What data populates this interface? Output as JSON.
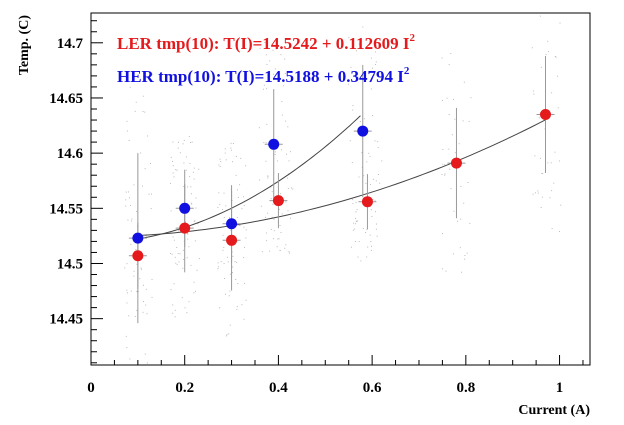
{
  "chart_data": {
    "type": "scatter",
    "xlabel": "Current (A)",
    "ylabel": "Temp. (C)",
    "xlim": [
      0,
      1.065
    ],
    "ylim": [
      14.408,
      14.727
    ],
    "x_ticks": [
      "0",
      "0.2",
      "0.4",
      "0.6",
      "0.8",
      "1"
    ],
    "x_tick_values": [
      0,
      0.2,
      0.4,
      0.6,
      0.8,
      1.0
    ],
    "y_ticks": [
      "14.45",
      "14.5",
      "14.55",
      "14.6",
      "14.65",
      "14.7"
    ],
    "y_tick_values": [
      14.45,
      14.5,
      14.55,
      14.6,
      14.65,
      14.7
    ],
    "grid": false,
    "legend_placement": "top-left",
    "series": [
      {
        "name": "LER",
        "color": "#e41a1c",
        "fit_label": "LER tmp(10): T(I)=14.5242 + 0.112609 I",
        "fit_exponent": "2",
        "fit": {
          "a": 14.5242,
          "b": 0.112609,
          "x_range": [
            0.1,
            0.97
          ]
        },
        "points": [
          {
            "x": 0.1,
            "y": 14.507,
            "err": 0.03
          },
          {
            "x": 0.2,
            "y": 14.532,
            "err": 0.04
          },
          {
            "x": 0.3,
            "y": 14.521,
            "err": 0.045
          },
          {
            "x": 0.4,
            "y": 14.557,
            "err": 0.025
          },
          {
            "x": 0.59,
            "y": 14.556,
            "err": 0.025
          },
          {
            "x": 0.78,
            "y": 14.591,
            "err": 0.05
          },
          {
            "x": 0.97,
            "y": 14.635,
            "err": 0.053
          }
        ]
      },
      {
        "name": "HER",
        "color": "#1010e0",
        "fit_label": "HER tmp(10): T(I)=14.5188 + 0.34794 I",
        "fit_exponent": "2",
        "fit": {
          "a": 14.5188,
          "b": 0.34794,
          "x_range": [
            0.1,
            0.575
          ]
        },
        "points": [
          {
            "x": 0.1,
            "y": 14.523,
            "err": 0.077
          },
          {
            "x": 0.2,
            "y": 14.55,
            "err": 0.035
          },
          {
            "x": 0.3,
            "y": 14.536,
            "err": 0.035
          },
          {
            "x": 0.39,
            "y": 14.608,
            "err": 0.05
          },
          {
            "x": 0.58,
            "y": 14.62,
            "err": 0.06
          }
        ]
      }
    ]
  }
}
